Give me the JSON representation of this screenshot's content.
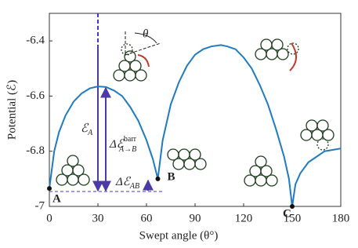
{
  "chart_data": {
    "type": "line",
    "xlabel": "Swept angle (θ°)",
    "ylabel": "Potential (ℰ)",
    "x": [
      0,
      3,
      6,
      10,
      15,
      20,
      25,
      30,
      35,
      40,
      45,
      50,
      55,
      60,
      64,
      67,
      70,
      75,
      80,
      85,
      90,
      95,
      100,
      106,
      110,
      115,
      120,
      125,
      130,
      135,
      140,
      145,
      148,
      150,
      152,
      155,
      160,
      165,
      170,
      175,
      180
    ],
    "series": [
      {
        "color": "#1f7bc0",
        "values": [
          -6.935,
          -6.8,
          -6.73,
          -6.67,
          -6.62,
          -6.59,
          -6.572,
          -6.565,
          -6.567,
          -6.58,
          -6.6,
          -6.64,
          -6.69,
          -6.76,
          -6.83,
          -6.9,
          -6.76,
          -6.63,
          -6.55,
          -6.49,
          -6.45,
          -6.43,
          -6.42,
          -6.415,
          -6.42,
          -6.43,
          -6.46,
          -6.5,
          -6.56,
          -6.63,
          -6.72,
          -6.82,
          -6.9,
          -7,
          -6.92,
          -6.88,
          -6.84,
          -6.82,
          -6.8,
          -6.795,
          -6.79
        ]
      }
    ],
    "xlim": [
      0,
      180
    ],
    "xticks": [
      0,
      30,
      60,
      90,
      120,
      150,
      180
    ],
    "ylim": [
      -7,
      -6.3
    ],
    "yticks": [
      -7,
      -6.8,
      -6.6,
      -6.4
    ],
    "grid": false,
    "points": [
      {
        "label": "A",
        "index": 0
      },
      {
        "label": "B",
        "index": 15
      },
      {
        "label": "C",
        "index": 33
      }
    ],
    "annotations": {
      "energy_a": {
        "main": "ℰ",
        "sub": "A"
      },
      "barrier": {
        "main": "Δℰ",
        "sup": "barr",
        "sub": "A→B"
      },
      "delta_ab": {
        "main": "Δℰ",
        "sub": "AB"
      },
      "angle": "θ"
    }
  }
}
